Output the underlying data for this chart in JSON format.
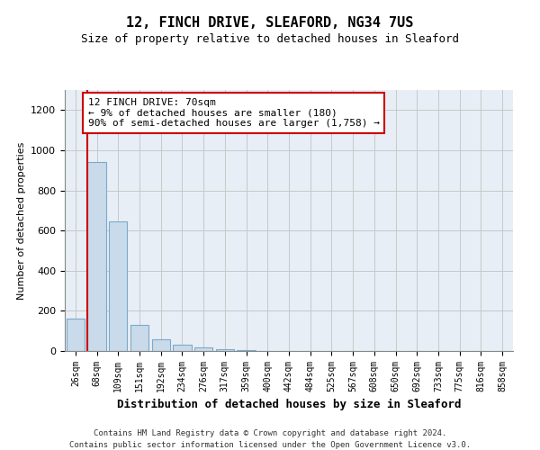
{
  "title": "12, FINCH DRIVE, SLEAFORD, NG34 7US",
  "subtitle": "Size of property relative to detached houses in Sleaford",
  "xlabel": "Distribution of detached houses by size in Sleaford",
  "ylabel": "Number of detached properties",
  "footnote1": "Contains HM Land Registry data © Crown copyright and database right 2024.",
  "footnote2": "Contains public sector information licensed under the Open Government Licence v3.0.",
  "bar_labels": [
    "26sqm",
    "68sqm",
    "109sqm",
    "151sqm",
    "192sqm",
    "234sqm",
    "276sqm",
    "317sqm",
    "359sqm",
    "400sqm",
    "442sqm",
    "484sqm",
    "525sqm",
    "567sqm",
    "608sqm",
    "650sqm",
    "692sqm",
    "733sqm",
    "775sqm",
    "816sqm",
    "858sqm"
  ],
  "bar_values": [
    160,
    940,
    645,
    130,
    60,
    32,
    18,
    10,
    5,
    2,
    1,
    0,
    0,
    0,
    0,
    0,
    0,
    0,
    0,
    0,
    0
  ],
  "bar_color": "#c9daea",
  "bar_edgecolor": "#7baac9",
  "highlight_bar_index": 1,
  "highlight_color": "#cc0000",
  "annotation_text": "12 FINCH DRIVE: 70sqm\n← 9% of detached houses are smaller (180)\n90% of semi-detached houses are larger (1,758) →",
  "annotation_box_color": "#ffffff",
  "annotation_box_edgecolor": "#cc0000",
  "ylim": [
    0,
    1300
  ],
  "yticks": [
    0,
    200,
    400,
    600,
    800,
    1000,
    1200
  ],
  "background_color": "#ffffff",
  "grid_color": "#c8c8c8",
  "plot_bg_color": "#e8eef5"
}
